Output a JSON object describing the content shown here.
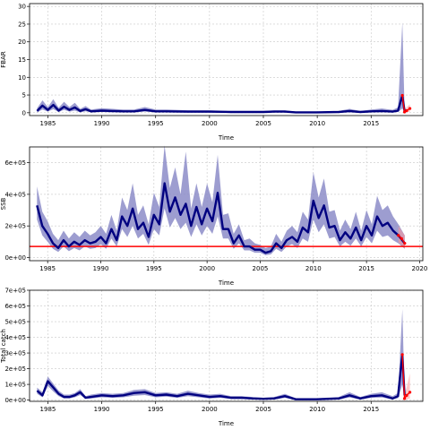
{
  "chart_data": [
    {
      "type": "line",
      "ylabel": "FBAR",
      "xlabel": "Time",
      "xlim": [
        1983.3,
        2019.8
      ],
      "ylim": [
        -0.8,
        30.8
      ],
      "xticks": [
        1985,
        1990,
        1995,
        2000,
        2005,
        2010,
        2015
      ],
      "yticks": [
        0,
        5,
        10,
        15,
        20,
        25,
        30
      ],
      "ytick_labels": [
        "0",
        "5",
        "10",
        "15",
        "20",
        "25",
        "30"
      ],
      "grid": true,
      "series": [
        {
          "role": "estimate",
          "color": "#000080",
          "x": [
            1984,
            1984.5,
            1985,
            1985.5,
            1986,
            1986.5,
            1987,
            1987.5,
            1988,
            1988.5,
            1989,
            1990,
            1991,
            1992,
            1993,
            1994,
            1995,
            1996,
            1998,
            2000,
            2002,
            2004,
            2005,
            2006,
            2007,
            2008,
            2010,
            2012,
            2013,
            2014,
            2015,
            2016,
            2017,
            2017.5,
            2017.9,
            2018.1
          ],
          "y": [
            0.5,
            2.0,
            0.8,
            2.2,
            0.6,
            1.7,
            0.8,
            1.5,
            0.5,
            1.0,
            0.4,
            0.6,
            0.5,
            0.4,
            0.4,
            0.8,
            0.4,
            0.4,
            0.3,
            0.3,
            0.2,
            0.2,
            0.2,
            0.3,
            0.3,
            0.1,
            0.1,
            0.2,
            0.5,
            0.2,
            0.4,
            0.5,
            0.3,
            0.6,
            4.9,
            0.5
          ],
          "upper": [
            1.3,
            3.5,
            1.6,
            3.8,
            1.4,
            3.1,
            1.6,
            2.8,
            1.1,
            1.9,
            0.9,
            1.3,
            1.1,
            0.9,
            0.9,
            1.6,
            0.9,
            0.9,
            0.7,
            0.7,
            0.5,
            0.5,
            0.5,
            0.7,
            0.7,
            0.3,
            0.3,
            0.5,
            1.1,
            0.5,
            0.9,
            1.2,
            0.8,
            1.5,
            25.5,
            1.4
          ],
          "lower": [
            0.1,
            0.9,
            0.3,
            1.0,
            0.2,
            0.8,
            0.3,
            0.6,
            0.1,
            0.4,
            0.1,
            0.2,
            0.1,
            0.1,
            0.1,
            0.3,
            0.1,
            0.1,
            0.0,
            0.0,
            0.0,
            0.0,
            0.0,
            0.1,
            0.1,
            0.0,
            0.0,
            0.0,
            0.1,
            0.0,
            0.1,
            0.1,
            0.1,
            0.2,
            1.2,
            0.1
          ]
        },
        {
          "role": "forecast",
          "color": "#ff0000",
          "x": [
            2017.9,
            2018.1,
            2018.3,
            2018.6
          ],
          "y": [
            4.9,
            0.2,
            0.6,
            1.2
          ],
          "upper": [
            6.0,
            0.9,
            1.5,
            2.4
          ],
          "lower": [
            3.5,
            0.0,
            0.1,
            0.3
          ]
        }
      ]
    },
    {
      "type": "line",
      "ylabel": "SSB",
      "xlabel": "Time",
      "xlim": [
        1983.3,
        2020.3
      ],
      "ylim": [
        -20000,
        700000
      ],
      "xticks": [
        1985,
        1990,
        1995,
        2000,
        2005,
        2010,
        2015,
        2020
      ],
      "yticks": [
        0,
        200000,
        400000,
        600000
      ],
      "ytick_labels": [
        "0e+00",
        "2e+05",
        "4e+05",
        "6e+05"
      ],
      "grid": true,
      "reference_line": {
        "y": 70000,
        "color": "#ff0000"
      },
      "series": [
        {
          "role": "estimate",
          "color": "#000080",
          "x": [
            1984,
            1984.5,
            1985,
            1985.5,
            1986,
            1986.5,
            1987,
            1987.5,
            1988,
            1988.5,
            1989,
            1989.5,
            1990,
            1990.5,
            1991,
            1991.5,
            1992,
            1992.5,
            1993,
            1993.5,
            1994,
            1994.5,
            1995,
            1995.5,
            1996,
            1996.5,
            1997,
            1997.5,
            1998,
            1998.5,
            1999,
            1999.5,
            2000,
            2000.5,
            2001,
            2001.5,
            2002,
            2002.5,
            2003,
            2003.5,
            2004,
            2004.5,
            2005,
            2005.5,
            2006,
            2006.5,
            2007,
            2007.5,
            2008,
            2008.5,
            2009,
            2009.5,
            2010,
            2010.5,
            2011,
            2011.5,
            2012,
            2012.5,
            2013,
            2013.5,
            2014,
            2014.5,
            2015,
            2015.5,
            2016,
            2016.5,
            2017,
            2017.5,
            2018,
            2018.6
          ],
          "y": [
            330000,
            200000,
            150000,
            90000,
            60000,
            110000,
            70000,
            100000,
            80000,
            110000,
            90000,
            100000,
            130000,
            90000,
            180000,
            110000,
            260000,
            200000,
            310000,
            180000,
            220000,
            130000,
            270000,
            210000,
            470000,
            290000,
            380000,
            270000,
            340000,
            200000,
            320000,
            210000,
            310000,
            230000,
            410000,
            180000,
            180000,
            90000,
            140000,
            70000,
            70000,
            50000,
            50000,
            30000,
            40000,
            90000,
            60000,
            110000,
            130000,
            100000,
            190000,
            160000,
            360000,
            250000,
            330000,
            190000,
            200000,
            110000,
            160000,
            120000,
            190000,
            110000,
            200000,
            140000,
            260000,
            200000,
            220000,
            170000,
            140000,
            90000
          ],
          "upper": [
            450000,
            290000,
            230000,
            150000,
            110000,
            170000,
            120000,
            160000,
            130000,
            170000,
            140000,
            160000,
            200000,
            150000,
            270000,
            170000,
            380000,
            300000,
            470000,
            270000,
            330000,
            210000,
            410000,
            320000,
            710000,
            440000,
            570000,
            400000,
            670000,
            310000,
            470000,
            320000,
            470000,
            350000,
            650000,
            270000,
            280000,
            150000,
            210000,
            110000,
            120000,
            90000,
            80000,
            60000,
            70000,
            150000,
            100000,
            170000,
            200000,
            160000,
            290000,
            240000,
            540000,
            380000,
            500000,
            290000,
            300000,
            170000,
            240000,
            180000,
            290000,
            170000,
            300000,
            210000,
            390000,
            300000,
            330000,
            260000,
            210000,
            140000
          ],
          "lower": [
            240000,
            140000,
            100000,
            55000,
            35000,
            70000,
            40000,
            60000,
            45000,
            70000,
            55000,
            60000,
            85000,
            55000,
            120000,
            70000,
            180000,
            130000,
            200000,
            120000,
            150000,
            80000,
            180000,
            140000,
            310000,
            190000,
            250000,
            180000,
            220000,
            130000,
            210000,
            140000,
            200000,
            150000,
            260000,
            120000,
            120000,
            55000,
            90000,
            45000,
            45000,
            30000,
            30000,
            15000,
            20000,
            55000,
            35000,
            70000,
            85000,
            60000,
            120000,
            100000,
            240000,
            160000,
            210000,
            120000,
            130000,
            70000,
            100000,
            75000,
            120000,
            70000,
            130000,
            90000,
            170000,
            130000,
            140000,
            110000,
            90000,
            55000
          ]
        },
        {
          "role": "forecast",
          "color": "#ff0000",
          "x": [
            2018,
            2018.3,
            2018.6
          ],
          "y": [
            140000,
            120000,
            90000
          ],
          "upper": [
            200000,
            170000,
            140000
          ],
          "lower": [
            95000,
            80000,
            55000
          ]
        }
      ]
    },
    {
      "type": "line",
      "ylabel": "Total catch",
      "xlabel": "Time",
      "xlim": [
        1983.3,
        2019.8
      ],
      "ylim": [
        -8000,
        700000
      ],
      "xticks": [
        1985,
        1990,
        1995,
        2000,
        2005,
        2010,
        2015
      ],
      "yticks": [
        0,
        100000,
        200000,
        300000,
        400000,
        500000,
        600000,
        700000
      ],
      "ytick_labels": [
        "0e+00",
        "1e+05",
        "2e+05",
        "3e+05",
        "4e+05",
        "5e+05",
        "6e+05",
        "7e+05"
      ],
      "grid": true,
      "series": [
        {
          "role": "estimate",
          "color": "#000080",
          "x": [
            1984,
            1984.5,
            1985,
            1985.5,
            1986,
            1986.5,
            1987,
            1987.5,
            1988,
            1988.5,
            1989,
            1990,
            1991,
            1992,
            1993,
            1994,
            1995,
            1996,
            1997,
            1998,
            1999,
            2000,
            2001,
            2002,
            2003,
            2004,
            2005,
            2006,
            2007,
            2008,
            2010,
            2012,
            2013,
            2014,
            2015,
            2016,
            2017,
            2017.5,
            2017.9,
            2018.1
          ],
          "y": [
            60000,
            30000,
            120000,
            80000,
            40000,
            20000,
            20000,
            30000,
            50000,
            15000,
            20000,
            30000,
            25000,
            30000,
            45000,
            50000,
            30000,
            35000,
            25000,
            40000,
            30000,
            20000,
            25000,
            15000,
            15000,
            10000,
            8000,
            10000,
            25000,
            5000,
            5000,
            10000,
            30000,
            10000,
            25000,
            30000,
            10000,
            25000,
            290000,
            30000
          ],
          "upper": [
            80000,
            50000,
            150000,
            105000,
            60000,
            35000,
            35000,
            45000,
            70000,
            25000,
            35000,
            45000,
            40000,
            45000,
            65000,
            70000,
            45000,
            50000,
            40000,
            60000,
            45000,
            35000,
            40000,
            25000,
            25000,
            20000,
            15000,
            20000,
            40000,
            12000,
            12000,
            20000,
            50000,
            20000,
            40000,
            50000,
            25000,
            45000,
            580000,
            50000
          ],
          "lower": [
            40000,
            18000,
            90000,
            55000,
            25000,
            10000,
            10000,
            18000,
            32000,
            8000,
            10000,
            18000,
            14000,
            18000,
            28000,
            32000,
            18000,
            22000,
            14000,
            25000,
            18000,
            10000,
            14000,
            7000,
            7000,
            4000,
            3000,
            4000,
            14000,
            1000,
            1000,
            4000,
            16000,
            4000,
            14000,
            16000,
            4000,
            12000,
            100000,
            15000
          ]
        },
        {
          "role": "forecast",
          "color": "#ff0000",
          "x": [
            2017.9,
            2018.1,
            2018.3,
            2018.6
          ],
          "y": [
            290000,
            10000,
            30000,
            50000
          ],
          "upper": [
            310000,
            40000,
            80000,
            170000
          ],
          "lower": [
            260000,
            0,
            5000,
            10000
          ]
        }
      ]
    }
  ]
}
